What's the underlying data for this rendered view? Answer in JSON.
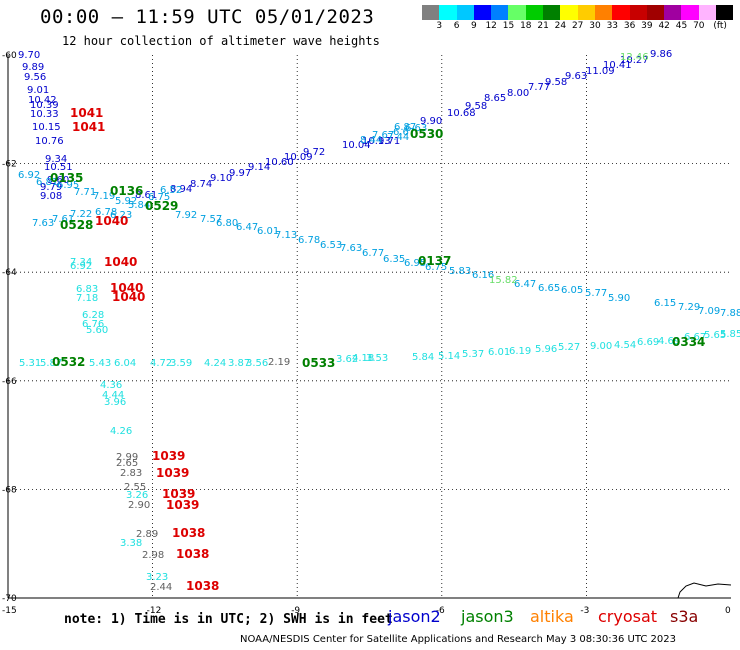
{
  "header": {
    "title": "00:00 — 11:59 UTC 05/01/2023",
    "subtitle": "12 hour collection of altimeter wave heights"
  },
  "colorbar": {
    "colors": [
      "#808080",
      "#00ffff",
      "#00c8ff",
      "#0000ff",
      "#0080ff",
      "#66ff66",
      "#00cc00",
      "#008000",
      "#ffff00",
      "#ffcc00",
      "#ff8000",
      "#ff0000",
      "#c80000",
      "#a00000",
      "#a000a0",
      "#ff00ff",
      "#ffb4ff",
      "#000000"
    ],
    "labels": [
      "3",
      "6",
      "9",
      "12",
      "15",
      "18",
      "21",
      "24",
      "27",
      "30",
      "33",
      "36",
      "39",
      "42",
      "45",
      "70",
      "(ft)"
    ]
  },
  "axes": {
    "x_ticks": [
      "-15",
      "-12",
      "-9",
      "-6",
      "-3",
      "0"
    ],
    "y_ticks": [
      "-60",
      "-62",
      "-64",
      "-66",
      "-68",
      "-70"
    ]
  },
  "passes": {
    "blue_nw": {
      "color": "#0000cc",
      "values": [
        "9.70",
        "9.89",
        "9.56",
        "9.01",
        "10.42",
        "10.39",
        "10.33",
        "10.15",
        "10.76"
      ]
    },
    "blue_diag": {
      "color": "#0000cc",
      "values": [
        "9.34",
        "10.51",
        "9.60",
        "9.79",
        "9.08",
        "8.61",
        "8.94",
        "8.74",
        "9.10",
        "9.97",
        "9.14",
        "10.60",
        "10.09",
        "9.72",
        "10.04",
        "10.13",
        "9.71",
        "9.90",
        "10.68",
        "9.58",
        "8.65",
        "8.00",
        "7.77",
        "9.58",
        "9.63",
        "11.09",
        "10.41",
        "10.27",
        "9.86"
      ]
    },
    "cyan_diag": {
      "color": "#00a0e0",
      "values": [
        "6.92",
        "6.81",
        "6.95",
        "7.71",
        "7.19",
        "6.78",
        "7.63",
        "7.61",
        "7.22",
        "7.92",
        "7.57",
        "6.80",
        "6.47",
        "6.01",
        "7.13",
        "6.78",
        "6.53",
        "7.63",
        "6.77",
        "6.35",
        "6.95",
        "6.75",
        "5.83",
        "6.16",
        "6.47",
        "6.65",
        "6.05",
        "5.77",
        "5.90",
        "6.15",
        "7.29",
        "7.09",
        "7.88",
        "7.44",
        "6.67",
        "8.44",
        "7.67",
        "6.87",
        "6.63",
        "6.52",
        "6.75",
        "5.84",
        "6.23",
        "5.92"
      ]
    },
    "cyan_zonal": {
      "color": "#20e0e0",
      "values": [
        "5.31",
        "5.87",
        "5.43",
        "6.04",
        "4.72",
        "3.59",
        "4.24",
        "3.87",
        "3.56",
        "3.62",
        "4.18",
        "3.53",
        "5.84",
        "5.14",
        "5.37",
        "6.01",
        "6.19",
        "5.96",
        "5.27",
        "9.00",
        "4.54",
        "6.69",
        "4.69",
        "6.67",
        "5.65",
        "5.85"
      ]
    },
    "cyan_south": {
      "color": "#20e0e0",
      "values": [
        "7.34",
        "6.92",
        "6.83",
        "7.18",
        "6.28",
        "6.76",
        "5.60",
        "4.36",
        "4.44",
        "3.96",
        "4.26",
        "3.26",
        "3.38",
        "3.23"
      ]
    },
    "gray_south": {
      "color": "#606060",
      "values": [
        "2.19",
        "2.99",
        "2.65",
        "2.83",
        "2.55",
        "2.90",
        "2.89",
        "2.98",
        "2.44"
      ]
    },
    "green_isolated": {
      "color": "#66dd66",
      "values": [
        "12.46",
        "15.82"
      ]
    },
    "dark_green_labels": {
      "color": "#008000",
      "values": [
        "0135",
        "0136",
        "0529",
        "0528",
        "0530",
        "0137",
        "0532",
        "0533",
        "0334"
      ]
    },
    "red_labels": {
      "color": "#dd0000",
      "values": [
        "1041",
        "1041",
        "1040",
        "1040",
        "1040",
        "1040",
        "1039",
        "1039",
        "1039",
        "1039",
        "1038",
        "1038",
        "1038"
      ]
    }
  },
  "note": "note: 1) Time is in UTC; 2) SWH is in feet",
  "legend": [
    {
      "name": "jason2",
      "color": "#0000cc"
    },
    {
      "name": "jason3",
      "color": "#008000"
    },
    {
      "name": "altika",
      "color": "#ff8000"
    },
    {
      "name": "cryosat",
      "color": "#dd0000"
    },
    {
      "name": "s3a",
      "color": "#880000"
    }
  ],
  "footer": "NOAA/NESDIS Center for Satellite Applications and Research   May  3 08:30:36 UTC 2023"
}
